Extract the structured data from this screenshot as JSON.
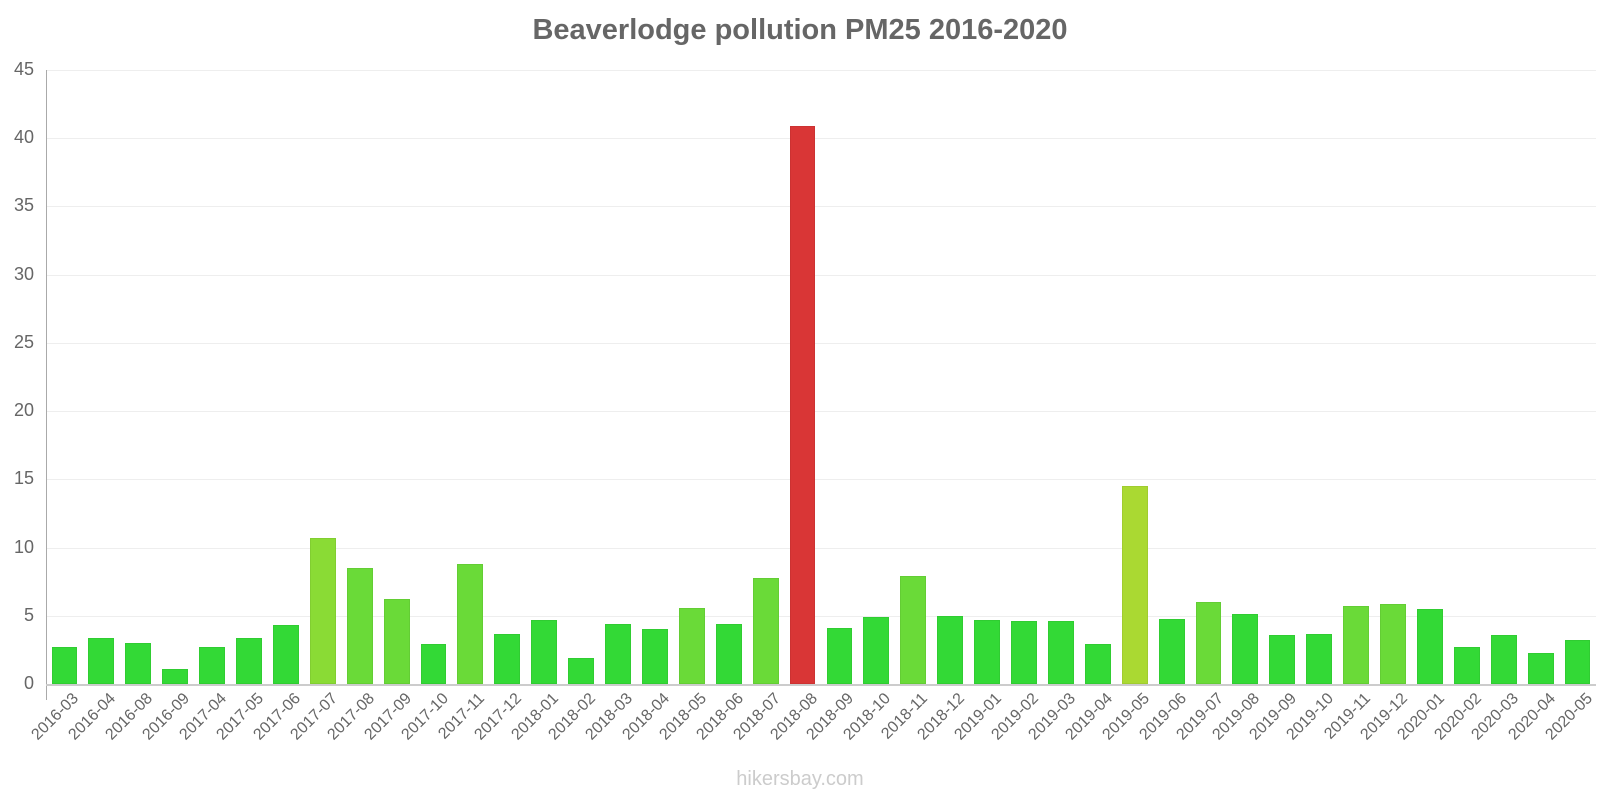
{
  "header": {
    "title": "Beaverlodge pollution PM25 2016-2020"
  },
  "footer": {
    "text": "hikersbay.com"
  },
  "colors": {
    "good": "#33d936",
    "moderate_low": "#6ada38",
    "moderate": "#8adb35",
    "elevated": "#aad932",
    "high": "#d93636",
    "text": "#666666"
  },
  "chart_data": {
    "type": "bar",
    "title": "Beaverlodge pollution PM25 2016-2020",
    "xlabel": "",
    "ylabel": "",
    "ylim": [
      0,
      45
    ],
    "yticks": [
      0,
      5,
      10,
      15,
      20,
      25,
      30,
      35,
      40,
      45
    ],
    "grid": true,
    "legend": "none",
    "categories": [
      "2016-03",
      "2016-04",
      "2016-08",
      "2016-09",
      "2017-04",
      "2017-05",
      "2017-06",
      "2017-07",
      "2017-08",
      "2017-09",
      "2017-10",
      "2017-11",
      "2017-12",
      "2018-01",
      "2018-02",
      "2018-03",
      "2018-04",
      "2018-05",
      "2018-06",
      "2018-07",
      "2018-08",
      "2018-09",
      "2018-10",
      "2018-11",
      "2018-12",
      "2019-01",
      "2019-02",
      "2019-03",
      "2019-04",
      "2019-05",
      "2019-06",
      "2019-07",
      "2019-08",
      "2019-09",
      "2019-10",
      "2019-11",
      "2019-12",
      "2020-01",
      "2020-02",
      "2020-03",
      "2020-04",
      "2020-05"
    ],
    "values": [
      2.7,
      3.4,
      3.0,
      1.1,
      2.7,
      3.4,
      4.3,
      10.7,
      8.5,
      6.2,
      2.9,
      8.8,
      3.7,
      4.7,
      1.9,
      4.4,
      4.0,
      5.6,
      4.4,
      7.8,
      40.9,
      4.1,
      4.9,
      7.9,
      5.0,
      4.7,
      4.6,
      4.6,
      2.9,
      14.5,
      4.8,
      6.0,
      5.1,
      3.6,
      3.7,
      5.7,
      5.9,
      5.5,
      2.7,
      3.6,
      2.3,
      3.2
    ],
    "bar_colors": [
      "#33d936",
      "#33d936",
      "#33d936",
      "#33d936",
      "#33d936",
      "#33d936",
      "#33d936",
      "#8adb35",
      "#6ada38",
      "#6ada38",
      "#33d936",
      "#6ada38",
      "#33d936",
      "#33d936",
      "#33d936",
      "#33d936",
      "#33d936",
      "#6ada38",
      "#33d936",
      "#6ada38",
      "#d93636",
      "#33d936",
      "#33d936",
      "#6ada38",
      "#33d936",
      "#33d936",
      "#33d936",
      "#33d936",
      "#33d936",
      "#aad932",
      "#33d936",
      "#6ada38",
      "#33d936",
      "#33d936",
      "#33d936",
      "#6ada38",
      "#6ada38",
      "#33d936",
      "#33d936",
      "#33d936",
      "#33d936",
      "#33d936"
    ]
  }
}
